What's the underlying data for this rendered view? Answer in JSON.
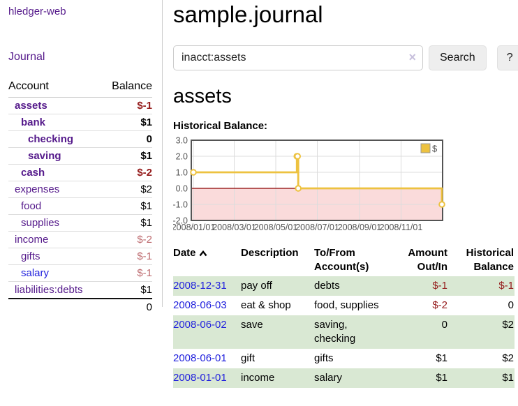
{
  "app": {
    "brand": "hledger-web",
    "nav_journal": "Journal"
  },
  "sidebar": {
    "table_headers": {
      "account": "Account",
      "balance": "Balance"
    },
    "accounts": [
      {
        "name": "assets",
        "indent": 1,
        "bold": true,
        "link": "purple",
        "balance": "$-1",
        "tone": "neg"
      },
      {
        "name": "bank",
        "indent": 2,
        "bold": true,
        "link": "purple",
        "balance": "$1",
        "tone": ""
      },
      {
        "name": "checking",
        "indent": 3,
        "bold": true,
        "link": "purple",
        "balance": "0",
        "tone": ""
      },
      {
        "name": "saving",
        "indent": 3,
        "bold": true,
        "link": "purple",
        "balance": "$1",
        "tone": ""
      },
      {
        "name": "cash",
        "indent": 2,
        "bold": true,
        "link": "purple",
        "balance": "$-2",
        "tone": "neg"
      },
      {
        "name": "expenses",
        "indent": 1,
        "bold": false,
        "link": "purple",
        "balance": "$2",
        "tone": ""
      },
      {
        "name": "food",
        "indent": 2,
        "bold": false,
        "link": "purple",
        "balance": "$1",
        "tone": ""
      },
      {
        "name": "supplies",
        "indent": 2,
        "bold": false,
        "link": "purple",
        "balance": "$1",
        "tone": ""
      },
      {
        "name": "income",
        "indent": 1,
        "bold": false,
        "link": "purple",
        "balance": "$-2",
        "tone": "negf"
      },
      {
        "name": "gifts",
        "indent": 2,
        "bold": false,
        "link": "purple",
        "balance": "$-1",
        "tone": "negf"
      },
      {
        "name": "salary",
        "indent": 2,
        "bold": false,
        "link": "blue",
        "balance": "$-1",
        "tone": "negf"
      },
      {
        "name": "liabilities:debts",
        "indent": 1,
        "bold": false,
        "link": "purple",
        "balance": "$1",
        "tone": ""
      }
    ],
    "total": "0"
  },
  "header": {
    "title": "sample.journal"
  },
  "search": {
    "value": "inacct:assets",
    "clear_icon": "×",
    "button": "Search",
    "help_button": "?"
  },
  "account_page": {
    "heading": "assets",
    "chart_label": "Historical Balance:"
  },
  "chart_data": {
    "type": "line",
    "step": true,
    "title": "Historical Balance",
    "legend": "$",
    "legend_position": "top-right",
    "grid": true,
    "ylim": [
      -2,
      3
    ],
    "y_ticks": [
      "3.0",
      "2.0",
      "1.0",
      "0.0",
      "-1.0",
      "-2.0"
    ],
    "x_range": [
      "2008/01/01",
      "2008/12/31"
    ],
    "x_ticks": [
      "2008/01/01",
      "2008/03/01",
      "2008/05/01",
      "2008/07/01",
      "2008/09/01",
      "2008/11/01"
    ],
    "series": [
      {
        "name": "$",
        "color": "#EDC240",
        "points": [
          [
            "2008/01/01",
            1
          ],
          [
            "2008/06/01",
            2
          ],
          [
            "2008/06/02",
            2
          ],
          [
            "2008/06/03",
            0
          ],
          [
            "2008/12/31",
            -1
          ]
        ]
      }
    ],
    "negative_region_color": "#fadbdb",
    "zero_line_color": "#8b0000",
    "border_color": "#545454",
    "grid_color": "#dcdcdc",
    "tick_label_color": "#545454"
  },
  "transactions": {
    "headers": {
      "date": "Date",
      "description": "Description",
      "accounts": "To/From Account(s)",
      "amount": "Amount Out/In",
      "balance": "Historical Balance"
    },
    "rows": [
      {
        "date": "2008-12-31",
        "description": "pay off",
        "accounts": "debts",
        "amount": "$-1",
        "amount_tone": "neg",
        "balance": "$-1",
        "balance_tone": "neg",
        "shade": true
      },
      {
        "date": "2008-06-03",
        "description": "eat & shop",
        "accounts": "food, supplies",
        "amount": "$-2",
        "amount_tone": "neg",
        "balance": "0",
        "balance_tone": "",
        "shade": false
      },
      {
        "date": "2008-06-02",
        "description": "save",
        "accounts": "saving, checking",
        "amount": "0",
        "amount_tone": "",
        "balance": "$2",
        "balance_tone": "",
        "shade": true
      },
      {
        "date": "2008-06-01",
        "description": "gift",
        "accounts": "gifts",
        "amount": "$1",
        "amount_tone": "",
        "balance": "$2",
        "balance_tone": "",
        "shade": false
      },
      {
        "date": "2008-01-01",
        "description": "income",
        "accounts": "salary",
        "amount": "$1",
        "amount_tone": "",
        "balance": "$1",
        "balance_tone": "",
        "shade": true
      }
    ]
  }
}
